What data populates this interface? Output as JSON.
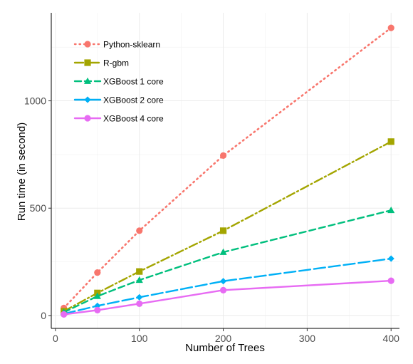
{
  "chart_data": {
    "type": "line",
    "title": "",
    "xlabel": "Number of Trees",
    "ylabel": "Run time (in second)",
    "x": [
      10,
      50,
      100,
      200,
      400
    ],
    "xlim": [
      -5,
      410
    ],
    "ylim": [
      -60,
      1410
    ],
    "xticks": [
      0,
      100,
      200,
      300,
      400
    ],
    "yticks": [
      0,
      500,
      1000
    ],
    "grid": true,
    "legend_position": "top-left",
    "series": [
      {
        "name": "Python-sklearn",
        "values": [
          35,
          200,
          395,
          745,
          1340
        ],
        "color": "#F8766D",
        "marker": "circle",
        "dash": "dotted"
      },
      {
        "name": "R-gbm",
        "values": [
          20,
          105,
          205,
          395,
          810
        ],
        "color": "#A3A500",
        "marker": "square",
        "dash": "dotdash"
      },
      {
        "name": "XGBoost 1 core",
        "values": [
          15,
          90,
          165,
          295,
          490
        ],
        "color": "#00BF7D",
        "marker": "triangle",
        "dash": "dashed"
      },
      {
        "name": "XGBoost 2 core",
        "values": [
          8,
          45,
          85,
          160,
          265
        ],
        "color": "#00B0F6",
        "marker": "diamond",
        "dash": "longdash"
      },
      {
        "name": "XGBoost 4 core",
        "values": [
          5,
          25,
          55,
          118,
          162
        ],
        "color": "#E76BF3",
        "marker": "circle",
        "dash": "solid"
      }
    ]
  }
}
